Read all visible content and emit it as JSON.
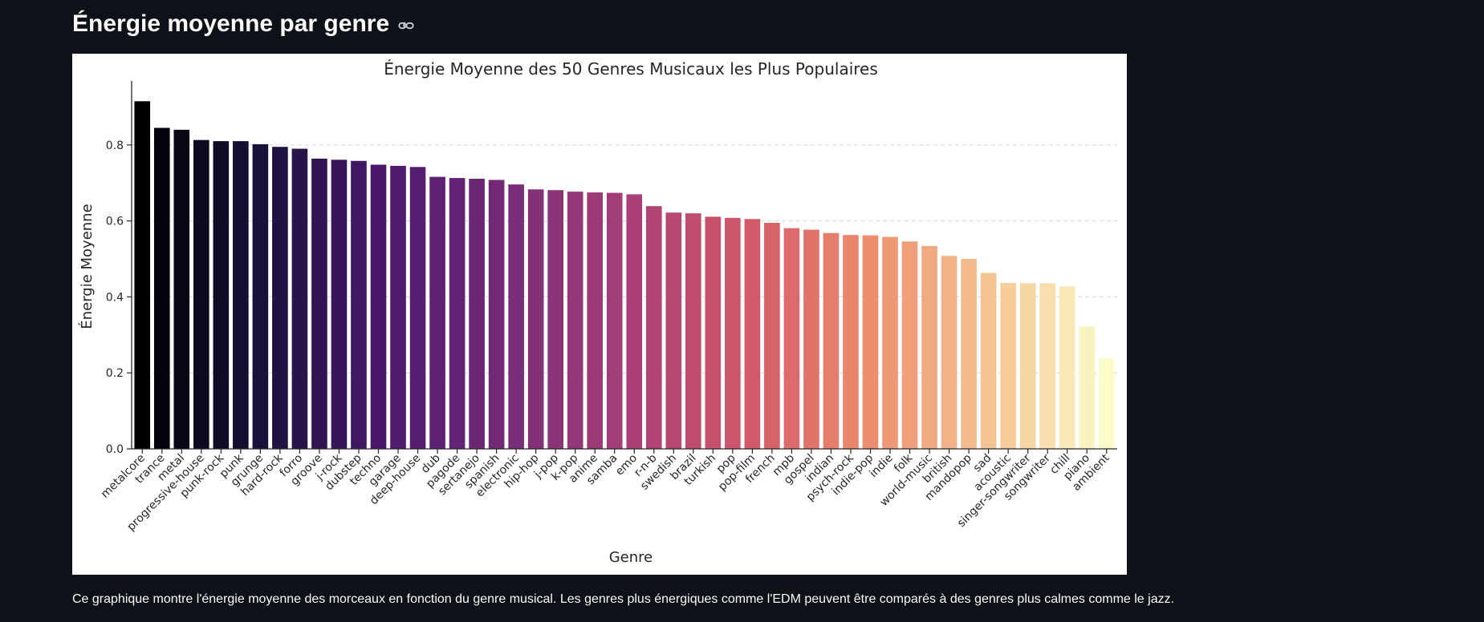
{
  "header": {
    "title": "Énergie moyenne par genre",
    "link_icon": "link-icon"
  },
  "caption": "Ce graphique montre l'énergie moyenne des morceaux en fonction du genre musical. Les genres plus énergiques comme l'EDM peuvent être comparés à des genres plus calmes comme le jazz.",
  "chart_data": {
    "type": "bar",
    "title": "Énergie Moyenne des 50 Genres Musicaux les Plus Populaires",
    "xlabel": "Genre",
    "ylabel": "Énergie Moyenne",
    "ylim": [
      0,
      0.96
    ],
    "yticks": [
      "0.0",
      "0.2",
      "0.4",
      "0.6",
      "0.8"
    ],
    "grid": "horizontal dashed",
    "palette": "magma",
    "categories": [
      "metalcore",
      "trance",
      "metal",
      "progressive-house",
      "punk-rock",
      "punk",
      "grunge",
      "hard-rock",
      "forro",
      "groove",
      "j-rock",
      "dubstep",
      "techno",
      "garage",
      "deep-house",
      "dub",
      "pagode",
      "sertanejo",
      "spanish",
      "electronic",
      "hip-hop",
      "j-pop",
      "k-pop",
      "anime",
      "samba",
      "emo",
      "r-n-b",
      "swedish",
      "brazil",
      "turkish",
      "pop",
      "pop-film",
      "french",
      "mpb",
      "gospel",
      "indian",
      "psych-rock",
      "indie-pop",
      "indie",
      "folk",
      "world-music",
      "british",
      "mandopop",
      "sad",
      "acoustic",
      "singer-songwriter",
      "songwriter",
      "chill",
      "piano",
      "ambient"
    ],
    "values": [
      0.915,
      0.845,
      0.84,
      0.813,
      0.81,
      0.81,
      0.802,
      0.795,
      0.79,
      0.764,
      0.761,
      0.758,
      0.748,
      0.745,
      0.742,
      0.716,
      0.713,
      0.711,
      0.708,
      0.696,
      0.683,
      0.681,
      0.677,
      0.675,
      0.674,
      0.67,
      0.639,
      0.622,
      0.62,
      0.611,
      0.608,
      0.605,
      0.595,
      0.581,
      0.577,
      0.568,
      0.563,
      0.562,
      0.558,
      0.546,
      0.534,
      0.508,
      0.5,
      0.463,
      0.437,
      0.436,
      0.436,
      0.428,
      0.322,
      0.238
    ]
  }
}
